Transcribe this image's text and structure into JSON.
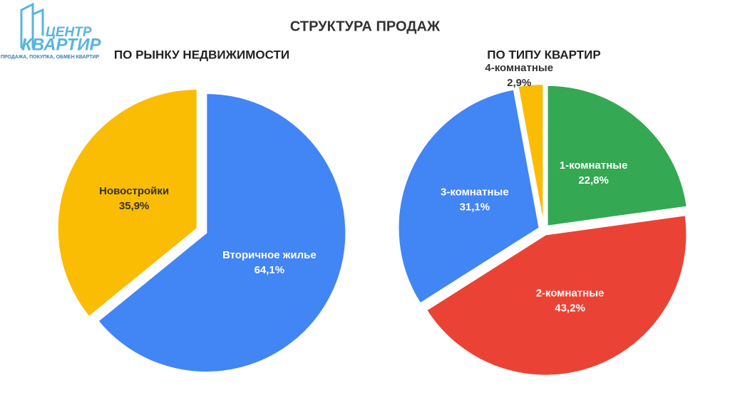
{
  "title": "СТРУКТУРА ПРОДАЖ",
  "logo": {
    "line1": "ЦЕНТР",
    "line2": "КВАРТИР",
    "tagline": "ПРОДАЖА, ПОКУПКА, ОБМЕН КВАРТИР"
  },
  "chart_data": [
    {
      "type": "pie",
      "title": "ПО РЫНКУ НЕДВИЖИМОСТИ",
      "categories": [
        "Вторичное жилье",
        "Новостройки"
      ],
      "values": [
        64.1,
        35.9
      ],
      "value_labels": [
        "64,1%",
        "35,9%"
      ],
      "colors": [
        "#4285f4",
        "#fbbc04"
      ],
      "label_colors": [
        "#ffffff",
        "#333333"
      ]
    },
    {
      "type": "pie",
      "title": "ПО ТИПУ КВАРТИР",
      "categories": [
        "1-комнатные",
        "2-комнатные",
        "3-комнатные",
        "4-комнатные"
      ],
      "values": [
        22.8,
        43.2,
        31.1,
        2.9
      ],
      "value_labels": [
        "22,8%",
        "43,2%",
        "31,1%",
        "2,9%"
      ],
      "colors": [
        "#34a853",
        "#ea4335",
        "#4285f4",
        "#fbbc04"
      ],
      "label_colors": [
        "#ffffff",
        "#ffffff",
        "#ffffff",
        "#333333"
      ]
    }
  ]
}
